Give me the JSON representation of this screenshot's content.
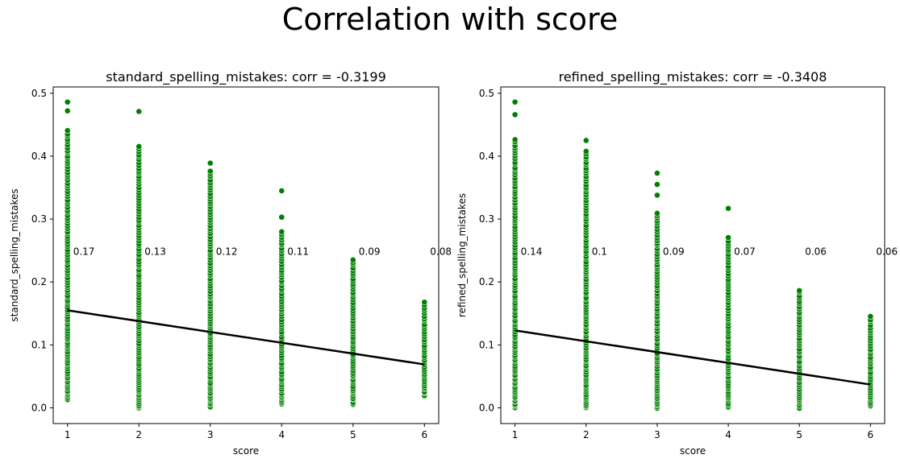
{
  "figure": {
    "title": "Correlation with score"
  },
  "colors": {
    "points": "#008000",
    "point_edge": "#ffffff",
    "trend_line": "#000000"
  },
  "chart_data": [
    {
      "type": "scatter",
      "title": "standard_spelling_mistakes: corr = -0.3199",
      "xlabel": "score",
      "ylabel": "standard_spelling_mistakes",
      "xlim": [
        0.8,
        6.2
      ],
      "ylim": [
        -0.025,
        0.51
      ],
      "x_ticks": [
        "1",
        "2",
        "3",
        "4",
        "5",
        "6"
      ],
      "y_ticks": [
        "0.0",
        "0.1",
        "0.2",
        "0.3",
        "0.4",
        "0.5"
      ],
      "grid": false,
      "point_columns": [
        {
          "x": 1,
          "ymin": 0.012,
          "ymax": 0.44,
          "extras": [
            0.486,
            0.472
          ]
        },
        {
          "x": 2,
          "ymin": 0.0,
          "ymax": 0.416,
          "extras": [
            0.471
          ]
        },
        {
          "x": 3,
          "ymin": 0.0,
          "ymax": 0.376,
          "extras": [
            0.389
          ]
        },
        {
          "x": 4,
          "ymin": 0.005,
          "ymax": 0.28,
          "extras": [
            0.345,
            0.303
          ]
        },
        {
          "x": 5,
          "ymin": 0.005,
          "ymax": 0.236,
          "extras": []
        },
        {
          "x": 6,
          "ymin": 0.018,
          "ymax": 0.168,
          "extras": []
        }
      ],
      "annotations": [
        {
          "x": 1,
          "text": "0.17"
        },
        {
          "x": 2,
          "text": "0.13"
        },
        {
          "x": 3,
          "text": "0.12"
        },
        {
          "x": 4,
          "text": "0.11"
        },
        {
          "x": 5,
          "text": "0.09"
        },
        {
          "x": 6,
          "text": "0.08"
        }
      ],
      "annotation_y": 0.248,
      "trend_line": {
        "x": [
          1,
          6
        ],
        "y": [
          0.155,
          0.069
        ]
      }
    },
    {
      "type": "scatter",
      "title": "refined_spelling_mistakes: corr = -0.3408",
      "xlabel": "score",
      "ylabel": "refined_spelling_mistakes",
      "xlim": [
        0.8,
        6.2
      ],
      "ylim": [
        -0.025,
        0.51
      ],
      "x_ticks": [
        "1",
        "2",
        "3",
        "4",
        "5",
        "6"
      ],
      "y_ticks": [
        "0.0",
        "0.1",
        "0.2",
        "0.3",
        "0.4",
        "0.5"
      ],
      "grid": false,
      "point_columns": [
        {
          "x": 1,
          "ymin": 0.0,
          "ymax": 0.426,
          "extras": [
            0.486,
            0.466
          ]
        },
        {
          "x": 2,
          "ymin": 0.0,
          "ymax": 0.408,
          "extras": [
            0.425
          ]
        },
        {
          "x": 3,
          "ymin": 0.0,
          "ymax": 0.31,
          "extras": [
            0.373,
            0.355,
            0.338
          ]
        },
        {
          "x": 4,
          "ymin": 0.0,
          "ymax": 0.27,
          "extras": [
            0.317
          ]
        },
        {
          "x": 5,
          "ymin": 0.0,
          "ymax": 0.187,
          "extras": []
        },
        {
          "x": 6,
          "ymin": 0.003,
          "ymax": 0.145,
          "extras": []
        }
      ],
      "annotations": [
        {
          "x": 1,
          "text": "0.14"
        },
        {
          "x": 2,
          "text": "0.1"
        },
        {
          "x": 3,
          "text": "0.09"
        },
        {
          "x": 4,
          "text": "0.07"
        },
        {
          "x": 5,
          "text": "0.06"
        },
        {
          "x": 6,
          "text": "0.06"
        }
      ],
      "annotation_y": 0.248,
      "trend_line": {
        "x": [
          1,
          6
        ],
        "y": [
          0.123,
          0.037
        ]
      }
    }
  ]
}
